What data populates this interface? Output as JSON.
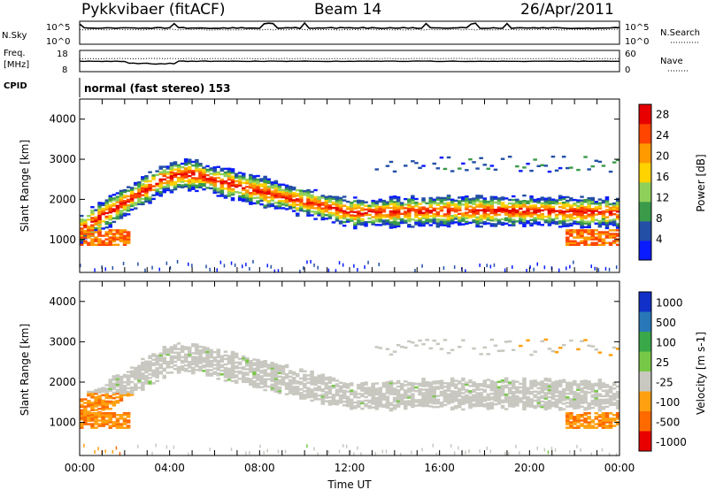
{
  "header": {
    "title": "Pykkvibaer (fitACF)",
    "beam": "Beam 14",
    "date": "26/Apr/2011"
  },
  "summary_panels": {
    "nsky_label": "N.Sky",
    "nsky_ticks": [
      "10^5",
      "10^0"
    ],
    "nsearch_label": "N.Search",
    "freq_label_line1": "Freq.",
    "freq_label_line2": "[MHz]",
    "freq_ticks": [
      "18",
      "8"
    ],
    "nave_ticks": [
      "60",
      "0"
    ],
    "nave_label": "Nave",
    "cpid_label": "CPID",
    "cpid_value": "normal (fast stereo) 153"
  },
  "colors": {
    "power_scale": [
      "#0a1cff",
      "#234fa6",
      "#3a9a4a",
      "#8fd05a",
      "#ffd200",
      "#ff9a00",
      "#ff4500",
      "#e60000"
    ],
    "velocity_scale": [
      "#1030c8",
      "#2878b8",
      "#38a848",
      "#78c848",
      "#c8c8c0",
      "#ffa010",
      "#ff6a00",
      "#e80000"
    ]
  },
  "chart_data": [
    {
      "type": "heatmap",
      "panel": "power",
      "ylabel": "Slant Range [km]",
      "ylim": [
        180,
        4500
      ],
      "yticks": [
        "4000",
        "3000",
        "2000",
        "1000"
      ],
      "xlim": [
        0,
        24
      ],
      "colorbar_label": "Power [dB]",
      "colorbar_ticks": [
        "28",
        "24",
        "20",
        "16",
        "12",
        "8",
        "4"
      ],
      "colorbar_range": [
        0,
        30
      ]
    },
    {
      "type": "heatmap",
      "panel": "velocity",
      "ylabel": "Slant Range [km]",
      "ylim": [
        180,
        4500
      ],
      "yticks": [
        "4000",
        "3000",
        "2000",
        "1000"
      ],
      "xlabel": "Time UT",
      "xticks": [
        "00:00",
        "04:00",
        "08:00",
        "12:00",
        "16:00",
        "20:00",
        "00:00"
      ],
      "xlim": [
        0,
        24
      ],
      "colorbar_label": "Velocity [m s-1]",
      "colorbar_ticks": [
        "1000",
        "500",
        "100",
        "25",
        "-25",
        "-100",
        "-500",
        "-1000"
      ]
    }
  ]
}
